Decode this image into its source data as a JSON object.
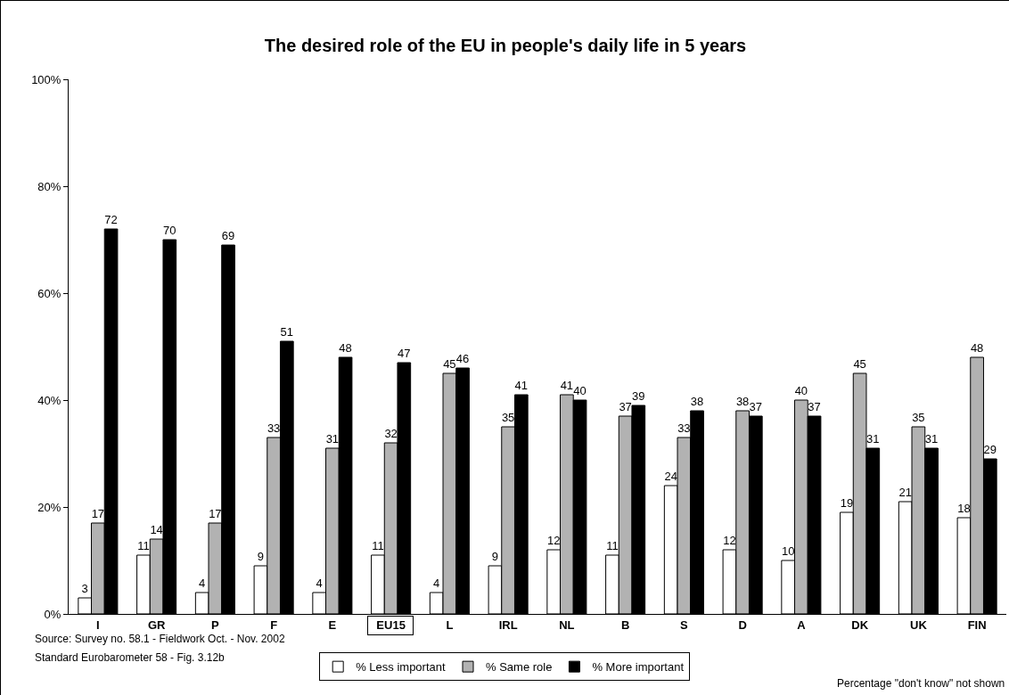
{
  "chart_data": {
    "type": "bar",
    "title": "The desired role of the EU in people's daily life in 5 years",
    "categories": [
      "I",
      "GR",
      "P",
      "F",
      "E",
      "EU15",
      "L",
      "IRL",
      "NL",
      "B",
      "S",
      "D",
      "A",
      "DK",
      "UK",
      "FIN"
    ],
    "series": [
      {
        "name": "% Less important",
        "color": "#ffffff",
        "values": [
          3,
          11,
          4,
          9,
          4,
          11,
          4,
          9,
          12,
          11,
          24,
          12,
          10,
          19,
          21,
          18
        ]
      },
      {
        "name": "% Same role",
        "color": "#b2b2b2",
        "values": [
          17,
          14,
          17,
          33,
          31,
          32,
          45,
          35,
          41,
          37,
          33,
          38,
          40,
          45,
          35,
          48
        ]
      },
      {
        "name": "% More important",
        "color": "#000000",
        "values": [
          72,
          70,
          69,
          51,
          48,
          47,
          46,
          41,
          40,
          39,
          38,
          37,
          37,
          31,
          31,
          29
        ]
      }
    ],
    "ylim": [
      0,
      100
    ],
    "yticks": [
      {
        "value": 0,
        "label": "0%"
      },
      {
        "value": 20,
        "label": "20%"
      },
      {
        "value": 40,
        "label": "40%"
      },
      {
        "value": 60,
        "label": "60%"
      },
      {
        "value": 80,
        "label": "80%"
      },
      {
        "value": 100,
        "label": "100%"
      }
    ],
    "grid": false,
    "legend": "bottom",
    "data_labels": true,
    "annotations": [
      "Source: Survey no. 58.1 - Fieldwork Oct. - Nov. 2002",
      "Standard Eurobarometer 58 - Fig. 3.12b",
      "Percentage \"don't know\" not shown"
    ]
  }
}
